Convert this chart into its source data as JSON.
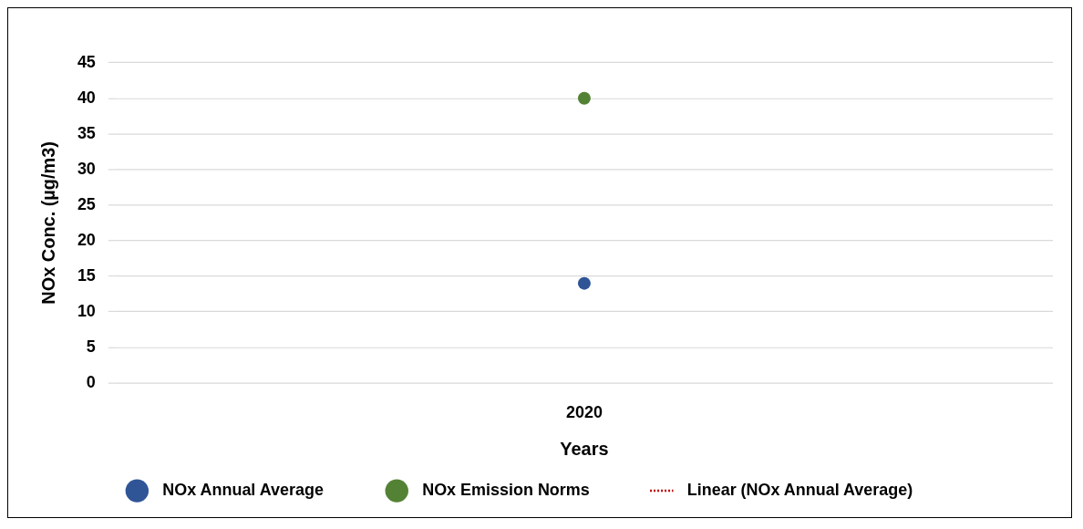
{
  "chart_data": {
    "type": "scatter",
    "xlabel": "Years",
    "ylabel": "NOx Conc. (µg/m3)",
    "categories": [
      "2020"
    ],
    "series": [
      {
        "name": "NOx Annual Average",
        "color": "#2f5597",
        "marker": "circle",
        "values": [
          14
        ]
      },
      {
        "name": "NOx Emission Norms",
        "color": "#548235",
        "marker": "circle",
        "values": [
          40
        ]
      },
      {
        "name": "Linear (NOx Annual Average)",
        "type": "line",
        "color": "#c00000",
        "line_style": "dotted",
        "marker": "none",
        "values": [
          null
        ]
      }
    ],
    "ylim": [
      0,
      45
    ],
    "yticks": [
      0,
      5,
      10,
      15,
      20,
      25,
      30,
      35,
      40,
      45
    ],
    "grid": "y",
    "legend": "bottom"
  }
}
